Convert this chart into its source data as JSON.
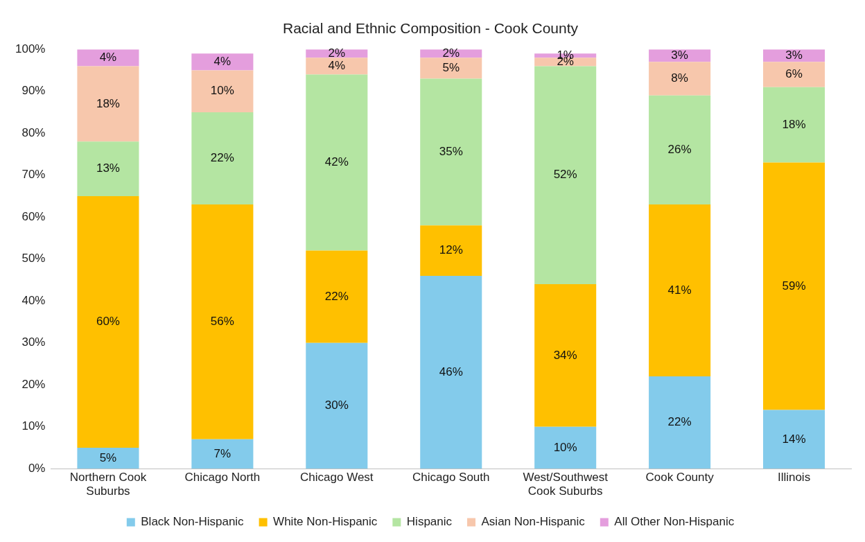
{
  "chart_data": {
    "type": "bar",
    "stacked": true,
    "title": "Racial and Ethnic Composition - Cook County",
    "categories": [
      "Northern Cook Suburbs",
      "Chicago North",
      "Chicago West",
      "Chicago South",
      "West/Southwest Cook Suburbs",
      "Cook County",
      "Illinois"
    ],
    "series": [
      {
        "name": "Black Non-Hispanic",
        "color": "#83cbeb",
        "values": [
          5,
          7,
          30,
          46,
          10,
          22,
          14
        ],
        "value_labels": [
          "5%",
          "7%",
          "30%",
          "46%",
          "10%",
          "22%",
          "14%"
        ]
      },
      {
        "name": "White Non-Hispanic",
        "color": "#ffc000",
        "values": [
          60,
          56,
          22,
          12,
          34,
          41,
          59
        ],
        "value_labels": [
          "60%",
          "56%",
          "22%",
          "12%",
          "34%",
          "41%",
          "59%"
        ]
      },
      {
        "name": "Hispanic",
        "color": "#b4e5a2",
        "values": [
          13,
          22,
          42,
          35,
          52,
          26,
          18
        ],
        "value_labels": [
          "13%",
          "22%",
          "42%",
          "35%",
          "52%",
          "26%",
          "18%"
        ]
      },
      {
        "name": "Asian Non-Hispanic",
        "color": "#f7c7ac",
        "values": [
          18,
          10,
          4,
          5,
          2,
          8,
          6
        ],
        "value_labels": [
          "18%",
          "10%",
          "4%",
          "5%",
          "2%",
          "8%",
          "6%"
        ]
      },
      {
        "name": "All Other Non-Hispanic",
        "color": "#e49edd",
        "values": [
          4,
          4,
          2,
          2,
          1,
          3,
          3
        ],
        "value_labels": [
          "4%",
          "4%",
          "2%",
          "2%",
          "1%",
          "3%",
          "3%"
        ]
      }
    ],
    "ylim": [
      0,
      100
    ],
    "yticks": [
      {
        "value": 0,
        "label": "0%"
      },
      {
        "value": 10,
        "label": "10%"
      },
      {
        "value": 20,
        "label": "20%"
      },
      {
        "value": 30,
        "label": "30%"
      },
      {
        "value": 40,
        "label": "40%"
      },
      {
        "value": 50,
        "label": "50%"
      },
      {
        "value": 60,
        "label": "60%"
      },
      {
        "value": 70,
        "label": "70%"
      },
      {
        "value": 80,
        "label": "80%"
      },
      {
        "value": 90,
        "label": "90%"
      },
      {
        "value": 100,
        "label": "100%"
      }
    ],
    "grid": false,
    "legend": "bottom"
  }
}
